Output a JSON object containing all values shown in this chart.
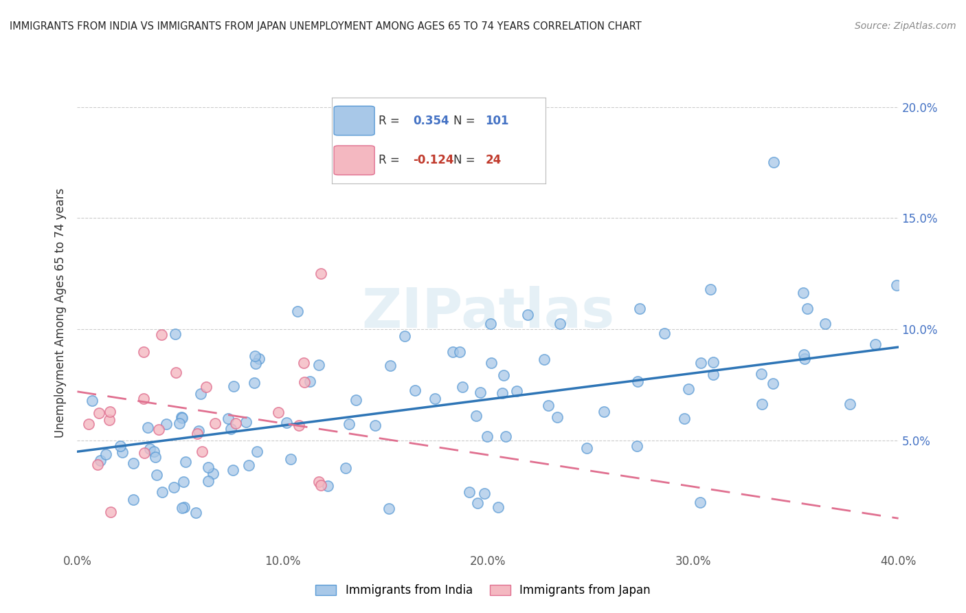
{
  "title": "IMMIGRANTS FROM INDIA VS IMMIGRANTS FROM JAPAN UNEMPLOYMENT AMONG AGES 65 TO 74 YEARS CORRELATION CHART",
  "source": "Source: ZipAtlas.com",
  "ylabel": "Unemployment Among Ages 65 to 74 years",
  "xlim": [
    0.0,
    0.4
  ],
  "ylim": [
    0.0,
    0.215
  ],
  "yticks": [
    0.05,
    0.1,
    0.15,
    0.2
  ],
  "ytick_labels": [
    "5.0%",
    "10.0%",
    "15.0%",
    "20.0%"
  ],
  "xticks": [
    0.0,
    0.1,
    0.2,
    0.3,
    0.4
  ],
  "xtick_labels": [
    "0.0%",
    "10.0%",
    "20.0%",
    "30.0%",
    "40.0%"
  ],
  "india_color": "#a8c8e8",
  "india_edge_color": "#5b9bd5",
  "japan_color": "#f4b8c1",
  "japan_edge_color": "#e07090",
  "india_line_color": "#2e75b6",
  "japan_line_color": "#e07090",
  "background_color": "#ffffff",
  "watermark": "ZIPatlas",
  "india_trend_y0": 0.045,
  "india_trend_y1": 0.092,
  "japan_trend_y0": 0.072,
  "japan_trend_y1": 0.015,
  "legend_india_r": "0.354",
  "legend_india_n": "101",
  "legend_japan_r": "-0.124",
  "legend_japan_n": "24"
}
